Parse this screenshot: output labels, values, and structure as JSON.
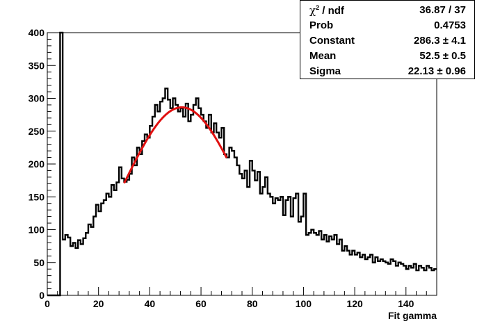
{
  "chart_data": {
    "type": "line",
    "subtype": "step-histogram",
    "xlabel": "Fit gamma",
    "ylabel": "",
    "title": "",
    "xlim": [
      0,
      152
    ],
    "ylim": [
      0,
      400
    ],
    "x_ticks": [
      "0",
      "20",
      "40",
      "60",
      "80",
      "100",
      "120",
      "140"
    ],
    "y_ticks": [
      "0",
      "50",
      "100",
      "150",
      "200",
      "250",
      "300",
      "350",
      "400"
    ],
    "bin_width": 1,
    "histogram": {
      "name": "Fit gamma",
      "color": "#000000",
      "bin_low_edges": [
        0,
        1,
        2,
        3,
        4,
        5,
        6,
        7,
        8,
        9,
        10,
        11,
        12,
        13,
        14,
        15,
        16,
        17,
        18,
        19,
        20,
        21,
        22,
        23,
        24,
        25,
        26,
        27,
        28,
        29,
        30,
        31,
        32,
        33,
        34,
        35,
        36,
        37,
        38,
        39,
        40,
        41,
        42,
        43,
        44,
        45,
        46,
        47,
        48,
        49,
        50,
        51,
        52,
        53,
        54,
        55,
        56,
        57,
        58,
        59,
        60,
        61,
        62,
        63,
        64,
        65,
        66,
        67,
        68,
        69,
        70,
        71,
        72,
        73,
        74,
        75,
        76,
        77,
        78,
        79,
        80,
        81,
        82,
        83,
        84,
        85,
        86,
        87,
        88,
        89,
        90,
        91,
        92,
        93,
        94,
        95,
        96,
        97,
        98,
        99,
        100,
        101,
        102,
        103,
        104,
        105,
        106,
        107,
        108,
        109,
        110,
        111,
        112,
        113,
        114,
        115,
        116,
        117,
        118,
        119,
        120,
        121,
        122,
        123,
        124,
        125,
        126,
        127,
        128,
        129,
        130,
        131,
        132,
        133,
        134,
        135,
        136,
        137,
        138,
        139,
        140,
        141,
        142,
        143,
        144,
        145,
        146,
        147,
        148,
        149,
        150,
        151
      ],
      "values": [
        0,
        0,
        0,
        0,
        0,
        400,
        85,
        92,
        88,
        75,
        80,
        72,
        84,
        78,
        87,
        95,
        108,
        104,
        120,
        138,
        128,
        140,
        145,
        155,
        150,
        168,
        160,
        172,
        195,
        178,
        173,
        176,
        185,
        210,
        198,
        225,
        215,
        235,
        245,
        240,
        258,
        272,
        290,
        280,
        295,
        300,
        315,
        298,
        285,
        300,
        290,
        280,
        285,
        272,
        292,
        265,
        275,
        290,
        300,
        285,
        275,
        265,
        255,
        275,
        248,
        262,
        248,
        240,
        255,
        215,
        210,
        225,
        220,
        210,
        198,
        185,
        178,
        190,
        165,
        205,
        190,
        175,
        188,
        155,
        165,
        180,
        155,
        150,
        140,
        148,
        145,
        150,
        122,
        145,
        150,
        120,
        148,
        155,
        112,
        120,
        155,
        92,
        95,
        100,
        95,
        92,
        98,
        85,
        92,
        82,
        90,
        85,
        92,
        78,
        85,
        68,
        75,
        68,
        62,
        68,
        62,
        65,
        58,
        62,
        55,
        58,
        62,
        50,
        58,
        52,
        55,
        52,
        50,
        48,
        55,
        52,
        45,
        50,
        48,
        45,
        40,
        45,
        42,
        48,
        38,
        45,
        42,
        38,
        45,
        42,
        38,
        40
      ]
    },
    "fit": {
      "name": "gaus",
      "color": "#e01010",
      "range": [
        30,
        70
      ],
      "constant": 286.3,
      "mean": 52.5,
      "sigma": 22.13
    },
    "legend_position": "top-right",
    "grid": false
  },
  "stats": {
    "rows": [
      {
        "label_prefix": "χ",
        "label_sup": "2",
        "label_suffix": " / ndf",
        "value": "36.87 / 37"
      },
      {
        "label": "Prob",
        "value": "0.4753"
      },
      {
        "label": "Constant",
        "value": "286.3 ± 4.1"
      },
      {
        "label": "Mean",
        "value": "52.5 ± 0.5"
      },
      {
        "label": "Sigma",
        "value": "22.13 ± 0.96"
      }
    ]
  }
}
